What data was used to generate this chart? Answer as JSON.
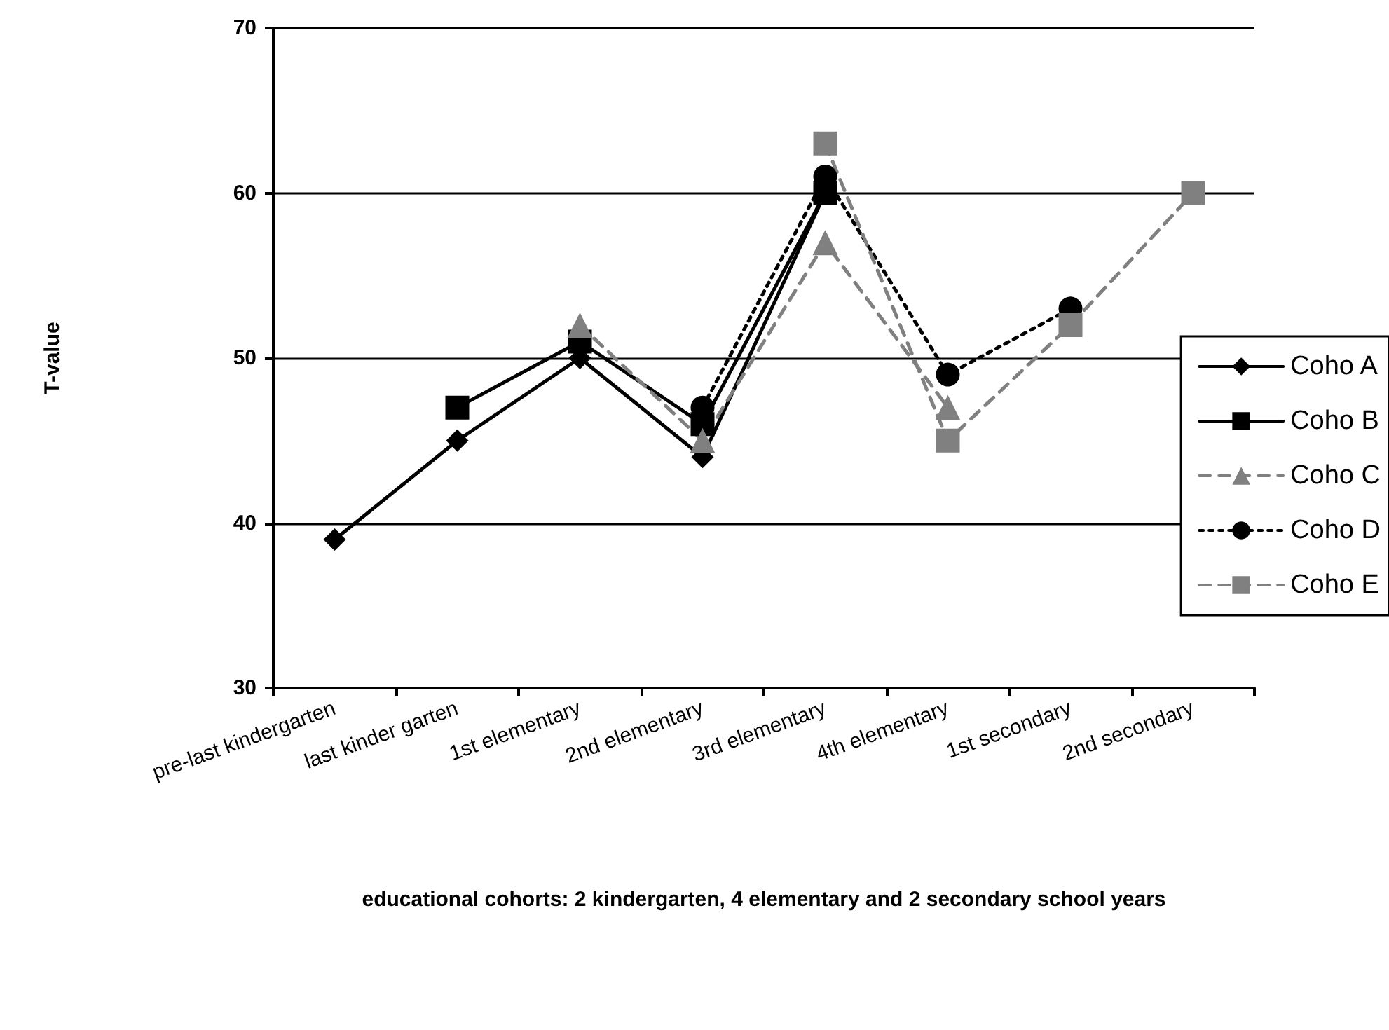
{
  "chart_data": {
    "type": "line",
    "xlabel": "educational cohorts: 2 kindergarten, 4 elementary and 2 secondary school years",
    "ylabel": "T-value",
    "categories": [
      "pre-last kindergarten",
      "last kinder garten",
      "1st elementary",
      "2nd elementary",
      "3rd elementary",
      "4th elementary",
      "1st secondary",
      "2nd secondary"
    ],
    "series": [
      {
        "name": "Coho A",
        "color": "#000000",
        "marker": "diamond",
        "line_style": "solid",
        "values": [
          39,
          45,
          50,
          44,
          60,
          null,
          null,
          null
        ]
      },
      {
        "name": "Coho B",
        "color": "#000000",
        "marker": "square",
        "line_style": "solid",
        "values": [
          null,
          47,
          51,
          46,
          60,
          null,
          null,
          null
        ]
      },
      {
        "name": "Coho C",
        "color": "#808080",
        "marker": "triangle",
        "line_style": "dashed",
        "values": [
          null,
          null,
          52,
          45,
          57,
          47,
          null,
          null
        ]
      },
      {
        "name": "Coho D",
        "color": "#000000",
        "marker": "circle",
        "line_style": "dotted",
        "values": [
          null,
          null,
          null,
          47,
          61,
          49,
          53,
          null
        ]
      },
      {
        "name": "Coho E",
        "color": "#808080",
        "marker": "square",
        "line_style": "dashed",
        "values": [
          null,
          null,
          null,
          null,
          63,
          45,
          52,
          60
        ]
      }
    ],
    "ylim": [
      30,
      70
    ],
    "yticks": [
      30,
      40,
      50,
      60,
      70
    ],
    "grid": "y",
    "legend": "right"
  }
}
